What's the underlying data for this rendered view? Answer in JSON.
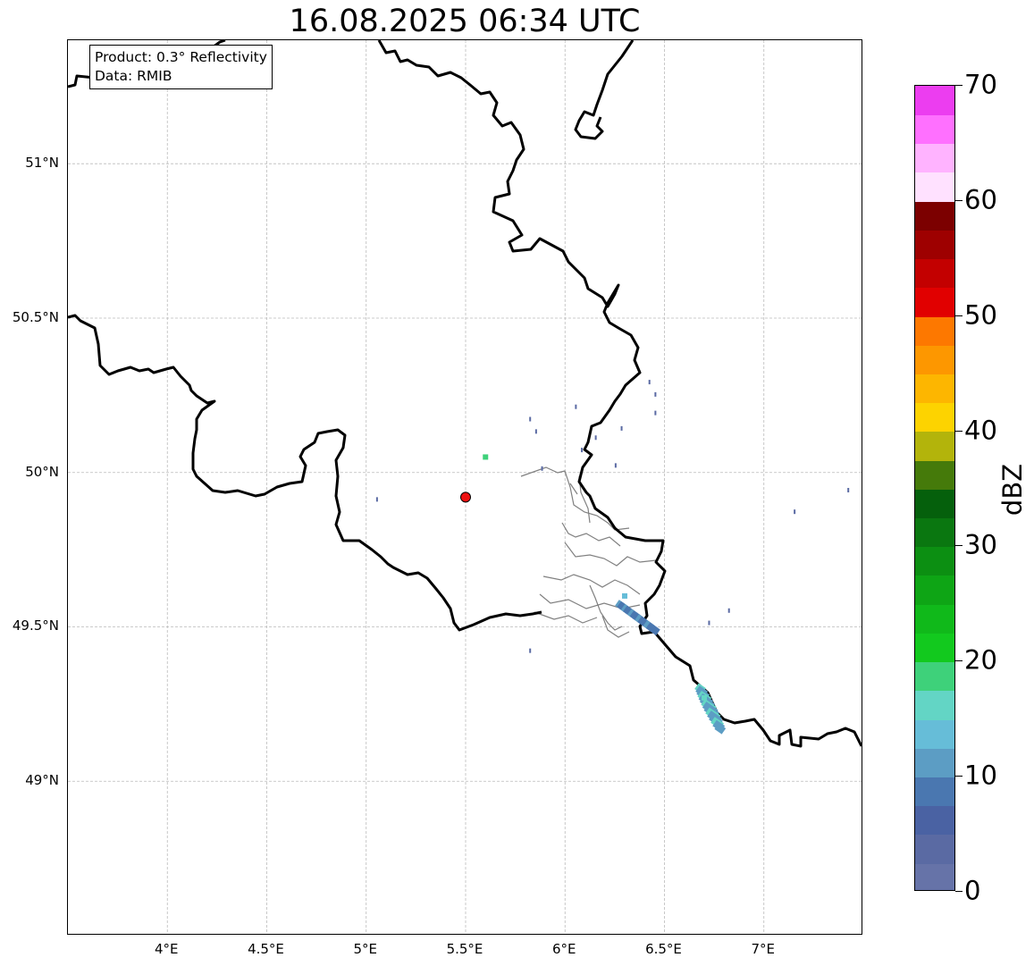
{
  "title": "16.08.2025 06:34 UTC",
  "info": {
    "product": "Product: 0.3° Reflectivity",
    "data": "Data: RMIB"
  },
  "map": {
    "lon_range": [
      3.5,
      7.5
    ],
    "lat_range": [
      48.5,
      51.4
    ],
    "lat_ticks": [
      {
        "value": 49.0,
        "label": "49°N"
      },
      {
        "value": 49.5,
        "label": "49.5°N"
      },
      {
        "value": 50.0,
        "label": "50°N"
      },
      {
        "value": 50.5,
        "label": "50.5°N"
      },
      {
        "value": 51.0,
        "label": "51°N"
      }
    ],
    "lon_ticks": [
      {
        "value": 4.0,
        "label": "4°E"
      },
      {
        "value": 4.5,
        "label": "4.5°E"
      },
      {
        "value": 5.0,
        "label": "5°E"
      },
      {
        "value": 5.5,
        "label": "5.5°E"
      },
      {
        "value": 6.0,
        "label": "6°E"
      },
      {
        "value": 6.5,
        "label": "6.5°E"
      },
      {
        "value": 7.0,
        "label": "7°E"
      }
    ],
    "gridlines": true,
    "radar_site": {
      "lon": 5.5,
      "lat": 49.92,
      "color": "#ee1111"
    },
    "echoes": [
      {
        "lon": 6.28,
        "lat": 49.57,
        "dbz": 8,
        "shape": "band",
        "lon2": 6.45,
        "lat2": 49.49
      },
      {
        "lon": 6.68,
        "lat": 49.3,
        "dbz": 12,
        "shape": "band",
        "lon2": 6.78,
        "lat2": 49.17
      },
      {
        "lon": 6.7,
        "lat": 49.27,
        "dbz": 16,
        "shape": "blob"
      },
      {
        "lon": 5.6,
        "lat": 50.05,
        "dbz": 18,
        "shape": "blob"
      },
      {
        "lon": 6.3,
        "lat": 49.6,
        "dbz": 14,
        "shape": "blob"
      }
    ]
  },
  "colorbar": {
    "unit": "dBZ",
    "min": 0,
    "max": 70,
    "ticks": [
      0,
      10,
      20,
      30,
      40,
      50,
      60,
      70
    ],
    "colors": [
      "#6673a8",
      "#5a6aa3",
      "#4a62a3",
      "#4a77b0",
      "#5c9dc4",
      "#66bdd8",
      "#63d5c5",
      "#3ed17a",
      "#12c91e",
      "#10b91a",
      "#0ea515",
      "#0c8f12",
      "#0a7710",
      "#05600c",
      "#457a0a",
      "#b3b40b",
      "#fdd300",
      "#fdb600",
      "#fd9700",
      "#fd7800",
      "#e10000",
      "#c30000",
      "#9e0000",
      "#7c0000",
      "#ffe1ff",
      "#ffb3ff",
      "#ff70ff",
      "#ec3df0"
    ]
  }
}
